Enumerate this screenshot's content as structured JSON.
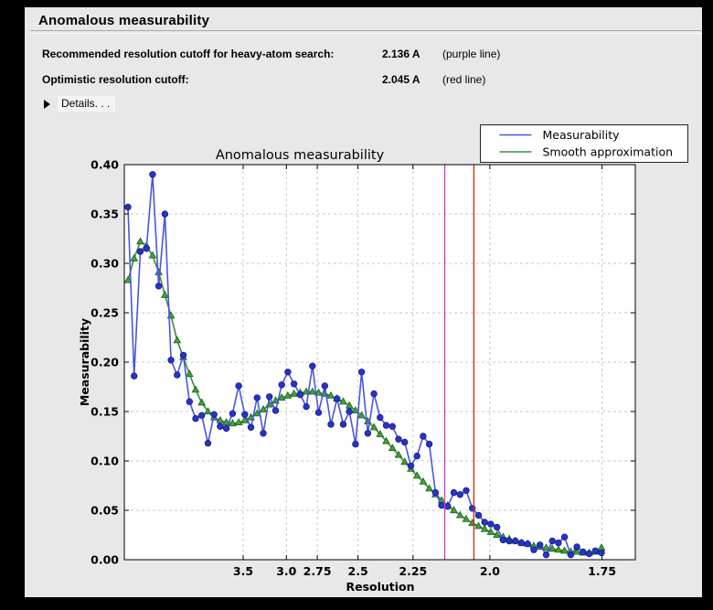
{
  "page": {
    "title": "Anomalous measurability"
  },
  "info": {
    "rows": [
      {
        "label": "Recommended resolution cutoff for heavy-atom search:",
        "value": "2.136 A",
        "note": "(purple line)"
      },
      {
        "label": "Optimistic resolution cutoff:",
        "value": "2.045 A",
        "note": "(red line)"
      }
    ],
    "details_label": "Details. . ."
  },
  "chart_data": {
    "type": "line",
    "title": "Anomalous measurability",
    "xlabel": "Resolution",
    "ylabel": "Measurability",
    "ylim": [
      0.0,
      0.4
    ],
    "grid": true,
    "plot_bg": "#ffffff",
    "fig_bg": "#e8e8e8",
    "grid_color": "#c9c9c9",
    "x_axis": {
      "scale": "reciprocal_d_squared",
      "tick_labels": [
        "3.5",
        "3.0",
        "2.75",
        "2.5",
        "2.25",
        "2.0",
        "1.75"
      ],
      "tick_values_A": [
        3.5,
        3.0,
        2.75,
        2.5,
        2.25,
        2.0,
        1.75
      ]
    },
    "ytick_labels": [
      "0.00",
      "0.05",
      "0.10",
      "0.15",
      "0.20",
      "0.25",
      "0.30",
      "0.35",
      "0.40"
    ],
    "ytick_values": [
      0.0,
      0.05,
      0.1,
      0.15,
      0.2,
      0.25,
      0.3,
      0.35,
      0.4
    ],
    "x_first_inv_d2": 0.00303,
    "x_step_inv_d2": 0.0041967,
    "series": [
      {
        "name": "Measurability",
        "color": "#4a55dd",
        "marker": "circle",
        "marker_color": "#2633cc",
        "marker_edge": "#171f7a",
        "values": [
          0.357,
          0.186,
          0.312,
          0.315,
          0.39,
          0.277,
          0.35,
          0.202,
          0.187,
          0.207,
          0.16,
          0.143,
          0.146,
          0.118,
          0.147,
          0.135,
          0.133,
          0.148,
          0.176,
          0.147,
          0.134,
          0.164,
          0.128,
          0.165,
          0.151,
          0.177,
          0.19,
          0.178,
          0.167,
          0.155,
          0.196,
          0.149,
          0.176,
          0.137,
          0.163,
          0.137,
          0.15,
          0.117,
          0.19,
          0.128,
          0.168,
          0.144,
          0.136,
          0.135,
          0.122,
          0.119,
          0.095,
          0.105,
          0.125,
          0.117,
          0.068,
          0.055,
          0.054,
          0.068,
          0.066,
          0.07,
          0.052,
          0.045,
          0.038,
          0.036,
          0.033,
          0.02,
          0.019,
          0.019,
          0.017,
          0.016,
          0.01,
          0.015,
          0.005,
          0.019,
          0.017,
          0.023,
          0.005,
          0.013,
          0.008,
          0.006,
          0.009,
          0.007
        ]
      },
      {
        "name": "Smooth approximation",
        "color": "#3a8c3a",
        "marker": "triangle",
        "marker_color": "#3fa03f",
        "marker_edge": "#1d601d",
        "values": [
          0.283,
          0.305,
          0.322,
          0.318,
          0.308,
          0.291,
          0.268,
          0.247,
          0.222,
          0.205,
          0.188,
          0.172,
          0.159,
          0.15,
          0.144,
          0.141,
          0.139,
          0.138,
          0.139,
          0.141,
          0.144,
          0.148,
          0.152,
          0.157,
          0.161,
          0.164,
          0.166,
          0.168,
          0.169,
          0.17,
          0.17,
          0.169,
          0.168,
          0.166,
          0.163,
          0.16,
          0.156,
          0.151,
          0.146,
          0.14,
          0.134,
          0.127,
          0.12,
          0.113,
          0.106,
          0.099,
          0.092,
          0.085,
          0.079,
          0.072,
          0.066,
          0.06,
          0.055,
          0.05,
          0.045,
          0.041,
          0.037,
          0.034,
          0.031,
          0.028,
          0.025,
          0.023,
          0.021,
          0.019,
          0.017,
          0.016,
          0.014,
          0.013,
          0.012,
          0.011,
          0.01,
          0.009,
          0.008,
          0.008,
          0.007,
          0.007,
          0.008,
          0.012
        ]
      }
    ],
    "vlines": [
      {
        "label": "purple line",
        "resolution_A": 2.136,
        "color": "#cc3fcc"
      },
      {
        "label": "red line",
        "resolution_A": 2.045,
        "color": "#d13410"
      }
    ],
    "legend": {
      "position": "upper right",
      "entries": [
        "Measurability",
        "Smooth approximation"
      ]
    }
  }
}
